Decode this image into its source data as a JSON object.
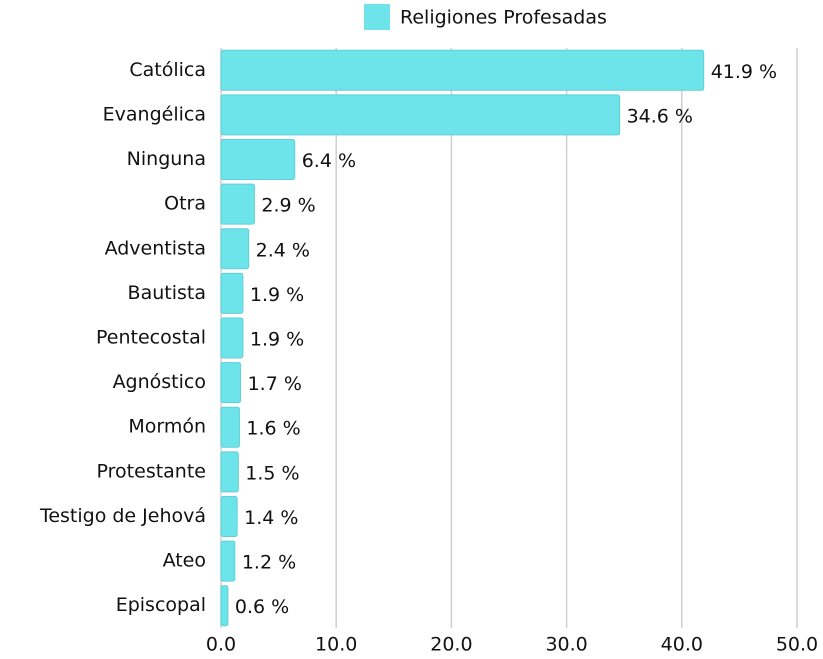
{
  "chart_data": {
    "type": "bar",
    "orientation": "horizontal",
    "categories": [
      "Católica",
      "Evangélica",
      "Ninguna",
      "Otra",
      "Adventista",
      "Bautista",
      "Pentecostal",
      "Agnóstico",
      "Mormón",
      "Protestante",
      "Testigo de Jehová",
      "Ateo",
      "Episcopal"
    ],
    "series": [
      {
        "name": "Religiones Profesadas",
        "color": "#6de3ea",
        "values": [
          41.9,
          34.6,
          6.4,
          2.9,
          2.4,
          1.9,
          1.9,
          1.7,
          1.6,
          1.5,
          1.4,
          1.2,
          0.6
        ],
        "value_labels": [
          "41.9 %",
          "34.6 %",
          "6.4 %",
          "2.9 %",
          "2.4 %",
          "1.9 %",
          "1.9 %",
          "1.7 %",
          "1.6 %",
          "1.5 %",
          "1.4 %",
          "1.2 %",
          "0.6 %"
        ]
      }
    ],
    "xlim": [
      0,
      50
    ],
    "xticks": [
      {
        "value": 0,
        "label": "0.0"
      },
      {
        "value": 10,
        "label": "10.0"
      },
      {
        "value": 20,
        "label": "20.0"
      },
      {
        "value": 30,
        "label": "30.0"
      },
      {
        "value": 40,
        "label": "40.0"
      },
      {
        "value": 50,
        "label": "50.0"
      }
    ],
    "grid": true,
    "legend": "top"
  }
}
